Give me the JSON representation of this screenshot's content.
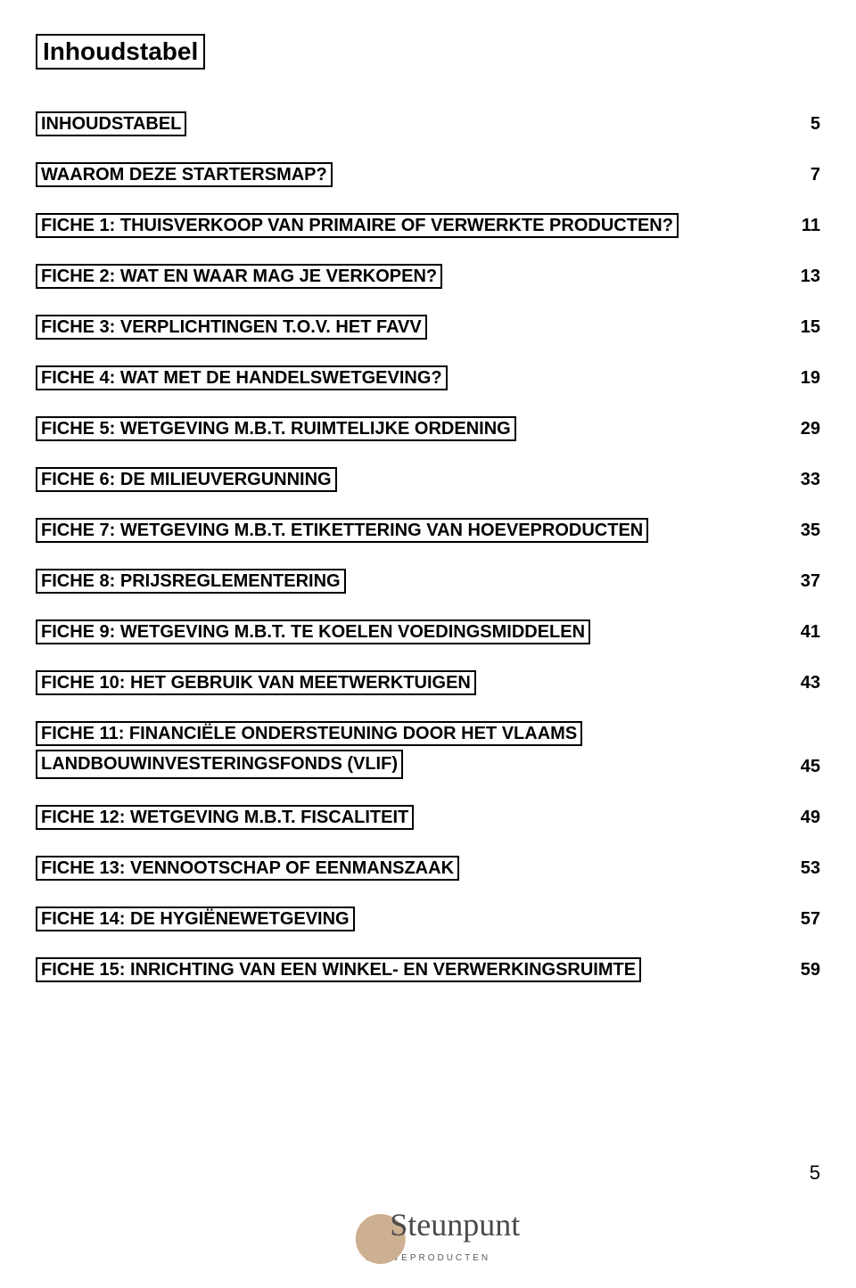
{
  "title": "Inhoudstabel",
  "entries": [
    {
      "label": "INHOUDSTABEL",
      "page": "5"
    },
    {
      "label": "WAAROM DEZE STARTERSMAP?",
      "page": "7"
    },
    {
      "label": "FICHE 1: THUISVERKOOP VAN PRIMAIRE OF VERWERKTE PRODUCTEN?",
      "page": "11"
    },
    {
      "label": "FICHE 2: WAT EN WAAR MAG JE VERKOPEN?",
      "page": "13"
    },
    {
      "label": "FICHE 3: VERPLICHTINGEN T.O.V. HET FAVV",
      "page": "15"
    },
    {
      "label": "FICHE 4: WAT MET DE HANDELSWETGEVING?",
      "page": "19"
    },
    {
      "label": "FICHE 5: WETGEVING M.B.T. RUIMTELIJKE ORDENING",
      "page": "29"
    },
    {
      "label": "FICHE 6: DE MILIEUVERGUNNING",
      "page": "33"
    },
    {
      "label": "FICHE 7: WETGEVING M.B.T. ETIKETTERING VAN HOEVEPRODUCTEN",
      "page": "35"
    },
    {
      "label": "FICHE 8: PRIJSREGLEMENTERING",
      "page": "37"
    },
    {
      "label": "FICHE 9: WETGEVING M.B.T. TE KOELEN VOEDINGSMIDDELEN",
      "page": "41"
    },
    {
      "label": "FICHE 10: HET GEBRUIK VAN MEETWERKTUIGEN",
      "page": "43"
    },
    {
      "label": "FICHE 11: FINANCIËLE ONDERSTEUNING DOOR HET VLAAMS",
      "label2": "LANDBOUWINVESTERINGSFONDS (VLIF)",
      "page": "45"
    },
    {
      "label": "FICHE 12: WETGEVING M.B.T. FISCALITEIT",
      "page": "49"
    },
    {
      "label": "FICHE 13: VENNOOTSCHAP OF EENMANSZAAK",
      "page": "53"
    },
    {
      "label": "FICHE 14: DE HYGIËNEWETGEVING",
      "page": "57"
    },
    {
      "label": "FICHE 15: INRICHTING VAN EEN WINKEL- EN VERWERKINGSRUIMTE",
      "page": "59"
    }
  ],
  "logo": {
    "script": "Steunpunt",
    "sub": "HOEVEPRODUCTEN"
  },
  "pagenum": "5",
  "colors": {
    "text": "#000000",
    "bg": "#ffffff",
    "logo_circle": "#cdb091",
    "logo_text": "#4a4a4a"
  }
}
